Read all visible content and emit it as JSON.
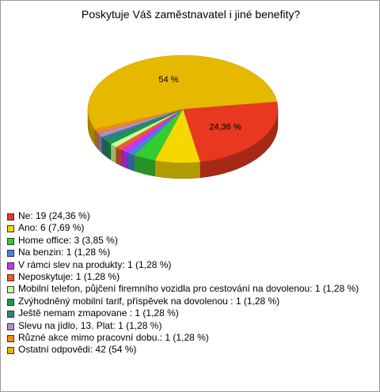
{
  "chart_data": {
    "type": "pie",
    "title": "Poskytuje Váš zaměstnavatel i jiné benefity?",
    "categories": [
      "Ne: 19 (24,36 %)",
      "Ano: 6 (7,69 %)",
      "Home office: 3 (3,85 %)",
      "Na benzin: 1 (1,28 %)",
      "V rámci slev na produkty: 1 (1,28 %)",
      "Neposkytuje: 1 (1,28 %)",
      "Mobilní telefon, půjčení firemního vozidla pro cestování na dovolenou: 1 (1,28 %)",
      "Zvýhodněný mobilní tarif, příspěvek na dovolenou : 1 (1,28 %)",
      "Ještě nemam zmapovane : 1 (1,28 %)",
      "Slevu na jídlo, 13. Plat: 1 (1,28 %)",
      "Různé akce mimo pracovní dobu.: 1 (1,28 %)",
      "Ostatní odpovědi: 42 (54 %)"
    ],
    "values": [
      24.36,
      7.69,
      3.85,
      1.28,
      1.28,
      1.28,
      1.28,
      1.28,
      1.28,
      1.28,
      1.28,
      54
    ],
    "value_labels": [
      "24,36 %",
      null,
      null,
      null,
      null,
      null,
      null,
      null,
      null,
      null,
      null,
      "54 %"
    ],
    "colors": [
      "#e8381f",
      "#f5d800",
      "#33cc33",
      "#4d7fe6",
      "#cc33ff",
      "#f25a2a",
      "#ccff99",
      "#1a9950",
      "#338080",
      "#b38ccc",
      "#f08a1a",
      "#e6b800"
    ]
  }
}
